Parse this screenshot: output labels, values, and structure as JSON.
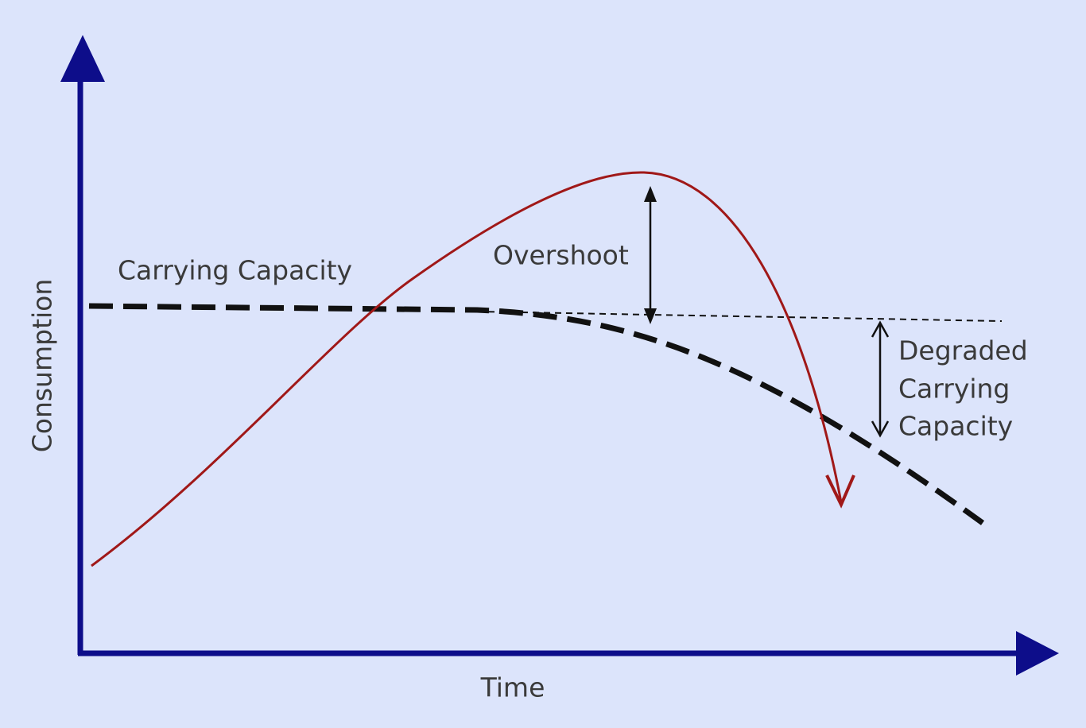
{
  "axes": {
    "y_label": "Consumption",
    "x_label": "Time"
  },
  "labels": {
    "carrying_capacity": "Carrying Capacity",
    "overshoot": "Overshoot",
    "degraded": [
      "Degraded",
      "Carrying",
      "Capacity"
    ]
  }
}
